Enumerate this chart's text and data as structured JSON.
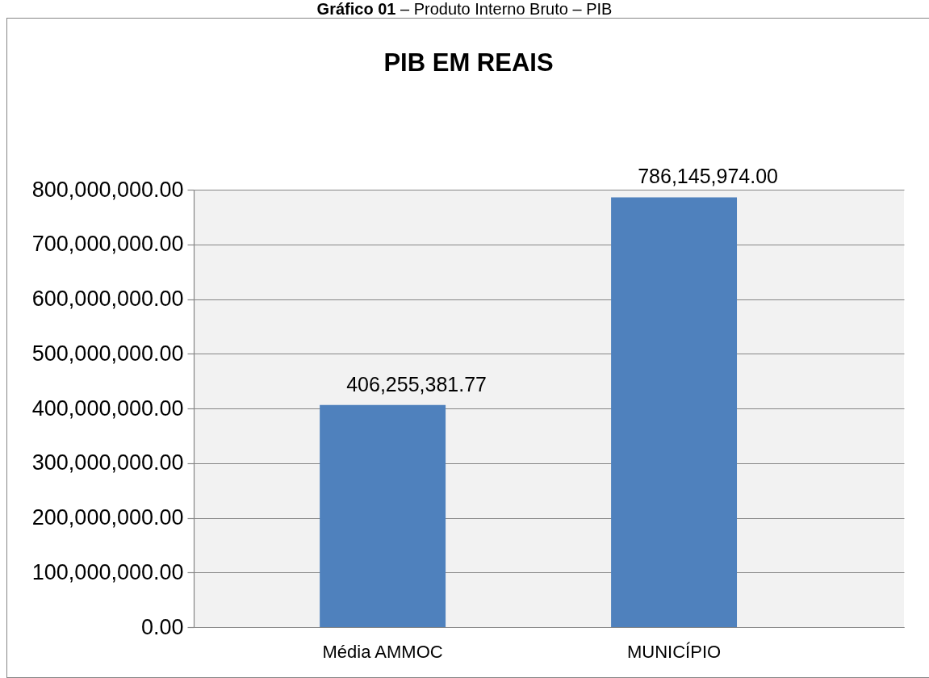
{
  "chart_data": {
    "type": "bar",
    "title": "PIB EM REAIS",
    "annotations": [
      "Gráfico 01 – Produto Interno Bruto – PIB"
    ],
    "categories": [
      "Média AMMOC",
      "MUNICÍPIO"
    ],
    "values": [
      406255381.77,
      786145974.0
    ],
    "value_labels": [
      "406,255,381.77",
      "786,145,974.00"
    ],
    "color": "#4f81bd",
    "ylim": [
      0,
      800000000
    ],
    "yticks": [
      {
        "value": 0,
        "label": "0.00"
      },
      {
        "value": 100000000,
        "label": "100,000,000.00"
      },
      {
        "value": 200000000,
        "label": "200,000,000.00"
      },
      {
        "value": 300000000,
        "label": "300,000,000.00"
      },
      {
        "value": 400000000,
        "label": "400,000,000.00"
      },
      {
        "value": 500000000,
        "label": "500,000,000.00"
      },
      {
        "value": 600000000,
        "label": "600,000,000.00"
      },
      {
        "value": 700000000,
        "label": "700,000,000.00"
      },
      {
        "value": 800000000,
        "label": "800,000,000.00"
      }
    ],
    "grid": "y"
  }
}
